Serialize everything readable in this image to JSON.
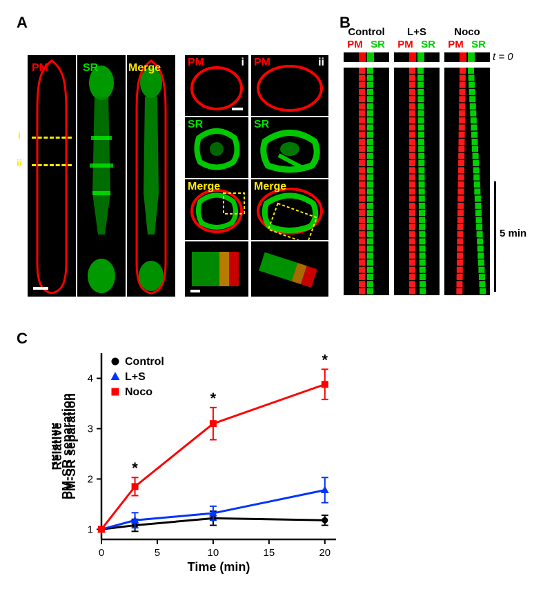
{
  "panels": {
    "A": "A",
    "B": "B",
    "C": "C"
  },
  "colors": {
    "PM": "#ff0000",
    "SR": "#00ff00",
    "Merge": "#ffea00",
    "dash": "#ffea00",
    "control_marker": "#000000",
    "ls_marker": "#0033ff",
    "noco_marker": "#ff0000",
    "axis": "#000000",
    "bg_black": "#000000",
    "white": "#ffffff"
  },
  "panelA": {
    "long_labels": {
      "PM": "PM",
      "SR": "SR",
      "Merge": "Merge"
    },
    "cross_labels": {
      "PM": "PM",
      "SR": "SR",
      "Merge": "Merge"
    },
    "section_i": "i",
    "section_ii": "ii",
    "dash_color": "#ffea00"
  },
  "panelB": {
    "conditions": [
      "Control",
      "L+S",
      "Noco"
    ],
    "sublabels_PM": "PM",
    "sublabels_SR": "SR",
    "t0": "t = 0",
    "timebar_label": "5 min",
    "rows": 32
  },
  "panelC": {
    "type": "line",
    "title": "",
    "xlabel": "Time (min)",
    "ylabel": "Relative\nPM-SR separation",
    "xlim": [
      0,
      21
    ],
    "ylim": [
      0.8,
      4.5
    ],
    "xticks": [
      0,
      5,
      10,
      15,
      20
    ],
    "yticks": [
      1,
      2,
      3,
      4
    ],
    "xtick_labels": [
      "0",
      "5",
      "10",
      "15",
      "20"
    ],
    "ytick_labels": [
      "1",
      "2",
      "3",
      "4"
    ],
    "series": [
      {
        "name": "Control",
        "x": [
          0,
          3,
          10,
          20
        ],
        "y": [
          1.0,
          1.08,
          1.22,
          1.18
        ],
        "yerr": [
          0.0,
          0.12,
          0.14,
          0.1
        ],
        "color": "#000000",
        "marker": "circle",
        "line_width": 3,
        "marker_size": 9
      },
      {
        "name": "L+S",
        "x": [
          0,
          3,
          10,
          20
        ],
        "y": [
          1.0,
          1.18,
          1.32,
          1.78
        ],
        "yerr": [
          0.0,
          0.15,
          0.14,
          0.25
        ],
        "color": "#0033ff",
        "marker": "triangle",
        "line_width": 3,
        "marker_size": 10
      },
      {
        "name": "Noco",
        "x": [
          0,
          3,
          10,
          20
        ],
        "y": [
          1.0,
          1.85,
          3.1,
          3.88
        ],
        "yerr": [
          0.0,
          0.18,
          0.32,
          0.3
        ],
        "color": "#ff0000",
        "marker": "square",
        "line_width": 3,
        "marker_size": 10,
        "sig": [
          "",
          "*",
          "*",
          "*"
        ]
      }
    ],
    "legend": [
      {
        "label": "Control",
        "color": "#000000",
        "marker": "circle"
      },
      {
        "label": "L+S",
        "color": "#0033ff",
        "marker": "triangle"
      },
      {
        "label": "Noco",
        "color": "#ff0000",
        "marker": "square"
      }
    ],
    "label_fontsize": 18,
    "tick_fontsize": 15,
    "legend_fontsize": 16,
    "sig_symbol": "*"
  }
}
